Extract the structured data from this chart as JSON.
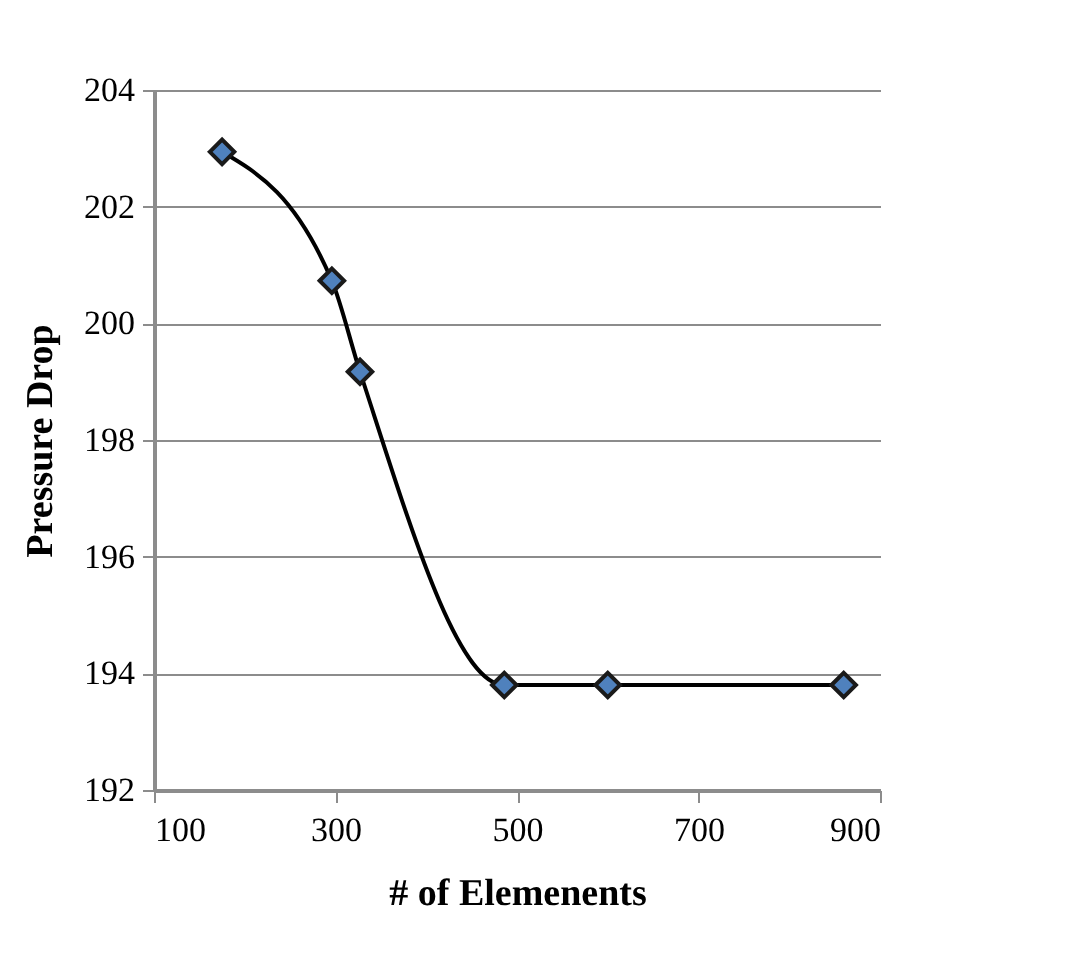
{
  "chart_data": {
    "type": "line",
    "xlabel": "# of Elemenents",
    "ylabel": "Pressure Drop",
    "x": [
      175,
      296,
      327,
      486,
      600,
      860
    ],
    "series": [
      {
        "color": "#4f81bd",
        "values": [
          202.94,
          200.73,
          199.17,
          193.8,
          193.8,
          193.8
        ]
      }
    ],
    "xlim": [
      100,
      900
    ],
    "xticks": [
      100,
      300,
      500,
      700,
      900
    ],
    "ylim": [
      192,
      204
    ],
    "yticks": [
      192,
      194,
      196,
      198,
      200,
      202,
      204
    ],
    "grid": "y",
    "marker": "diamond",
    "line_style": "solid",
    "legend": false
  }
}
